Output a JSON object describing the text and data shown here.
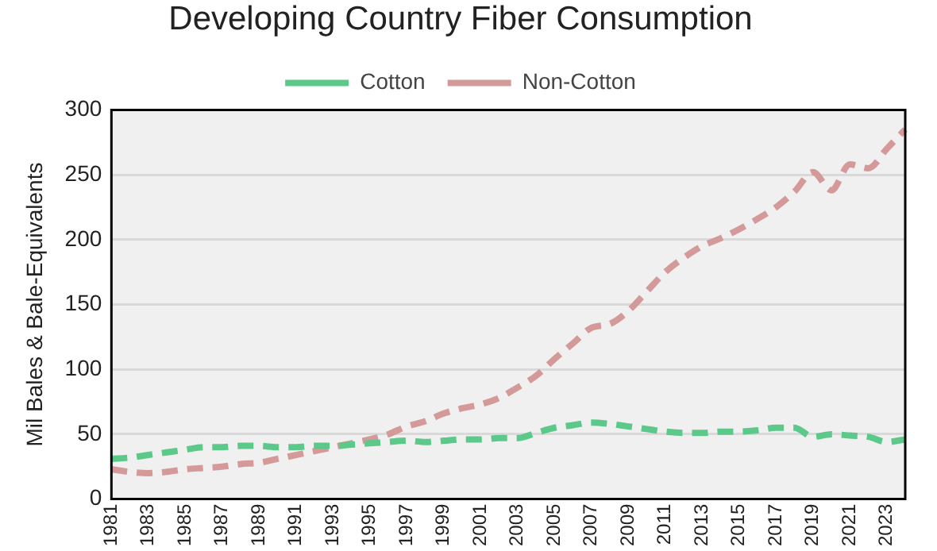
{
  "chart_data": {
    "type": "line",
    "title": "Developing Country Fiber Consumption",
    "ylabel": "Mil Bales & Bale-Equivalents",
    "categories": [
      "1981",
      null,
      "1983",
      null,
      "1985",
      null,
      "1987",
      null,
      "1989",
      null,
      "1991",
      null,
      "1993",
      null,
      "1995",
      null,
      "1997",
      null,
      "1999",
      null,
      "2001",
      null,
      "2003",
      null,
      "2005",
      null,
      "2007",
      null,
      "2009",
      null,
      "2011",
      null,
      "2013",
      null,
      "2015",
      null,
      "2017",
      null,
      "2019",
      null,
      "2021",
      null,
      "2023",
      null
    ],
    "series": [
      {
        "name": "Cotton",
        "color": "#5cc98a",
        "line_style": "dashed",
        "values": [
          31,
          32,
          34,
          36,
          38,
          40,
          40,
          41,
          41,
          40,
          40,
          41,
          41,
          42,
          43,
          44,
          45,
          44,
          45,
          46,
          46,
          47,
          47,
          51,
          55,
          57,
          59,
          58,
          56,
          54,
          52,
          51,
          51,
          52,
          52,
          53,
          55,
          55,
          48,
          50,
          49,
          48,
          44,
          46
        ]
      },
      {
        "name": "Non-Cotton",
        "color": "#d49a9a",
        "line_style": "dashed",
        "values": [
          23,
          21,
          20,
          21,
          23,
          24,
          25,
          27,
          28,
          31,
          34,
          37,
          40,
          43,
          46,
          50,
          56,
          60,
          66,
          70,
          73,
          78,
          86,
          95,
          108,
          120,
          132,
          135,
          145,
          160,
          175,
          186,
          195,
          201,
          208,
          216,
          225,
          237,
          252,
          238,
          258,
          255,
          270,
          285
        ]
      }
    ],
    "ylim": [
      0,
      300
    ],
    "yticks": [
      0,
      50,
      100,
      150,
      200,
      250,
      300
    ],
    "grid": "y",
    "legend": "top",
    "marker": "none"
  }
}
